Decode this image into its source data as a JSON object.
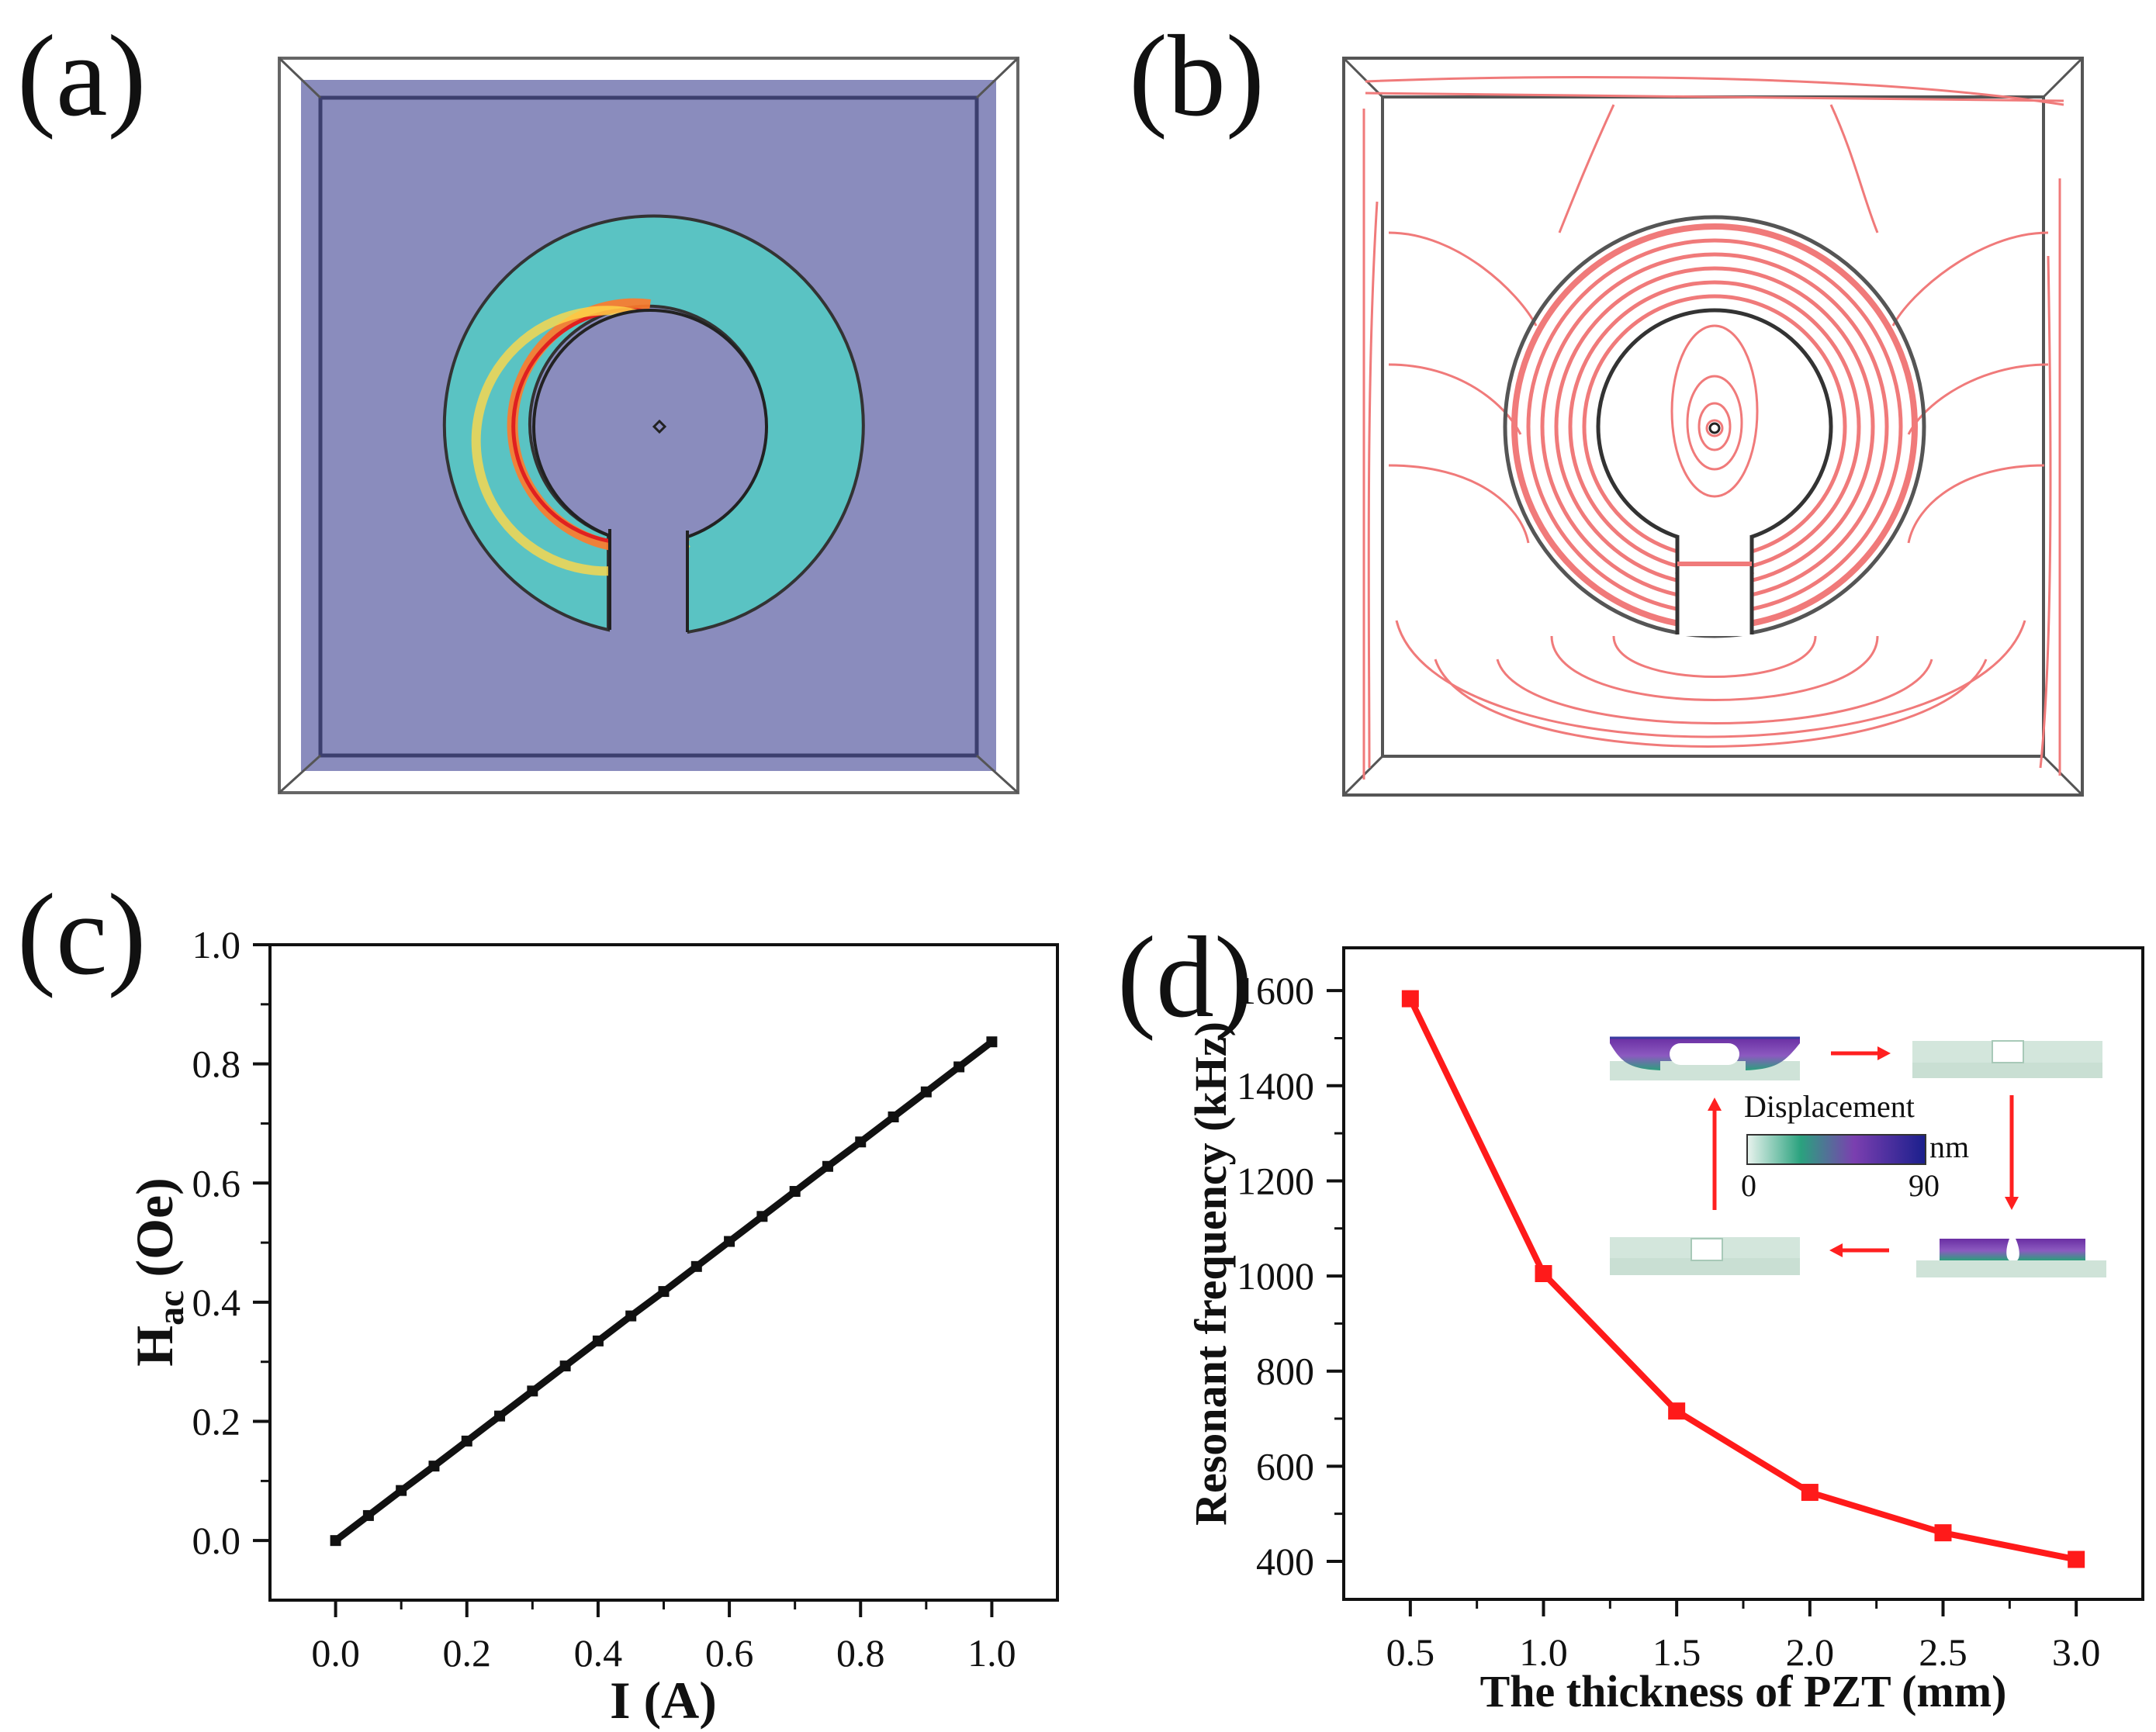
{
  "panels": {
    "a": {
      "label": "(a)"
    },
    "b": {
      "label": "(b)"
    },
    "c": {
      "label": "(c)"
    },
    "d": {
      "label": "(d)"
    }
  },
  "colors": {
    "chart_c_line": "#111111",
    "chart_d_line": "#ff1a1a",
    "field_lines": "#f07a7a",
    "background_box": "#8a8cbd"
  },
  "inset": {
    "title": "Displacement",
    "unit": "nm",
    "min_label": "0",
    "max_label": "90"
  },
  "chart_data": [
    {
      "id": "c",
      "type": "line",
      "xlabel": "I (A)",
      "ylabel_main": "H",
      "ylabel_sub": "ac",
      "ylabel_rest": " (Oe)",
      "xlim": [
        -0.1,
        1.1
      ],
      "ylim": [
        -0.1,
        1.0
      ],
      "xticks": [
        "0.0",
        "0.2",
        "0.4",
        "0.6",
        "0.8",
        "1.0"
      ],
      "yticks": [
        "0.0",
        "0.2",
        "0.4",
        "0.6",
        "0.8",
        "1.0"
      ],
      "x": [
        0.0,
        0.05,
        0.1,
        0.15,
        0.2,
        0.25,
        0.3,
        0.35,
        0.4,
        0.45,
        0.5,
        0.55,
        0.6,
        0.65,
        0.7,
        0.75,
        0.8,
        0.85,
        0.9,
        0.95,
        1.0
      ],
      "y": [
        0.0,
        0.042,
        0.084,
        0.125,
        0.167,
        0.209,
        0.251,
        0.293,
        0.335,
        0.377,
        0.418,
        0.46,
        0.502,
        0.544,
        0.586,
        0.628,
        0.669,
        0.711,
        0.753,
        0.795,
        0.837
      ]
    },
    {
      "id": "d",
      "type": "line",
      "xlabel": "The thickness of PZT (mm)",
      "ylabel": "Resonant frequency (kHz)",
      "xlim": [
        0.25,
        3.25
      ],
      "ylim": [
        320,
        1690
      ],
      "xticks": [
        "0.5",
        "1.0",
        "1.5",
        "2.0",
        "2.5",
        "3.0"
      ],
      "yticks": [
        "400",
        "600",
        "800",
        "1000",
        "1200",
        "1400",
        "1600"
      ],
      "x": [
        0.5,
        1.0,
        1.5,
        2.0,
        2.5,
        3.0
      ],
      "y": [
        1583,
        1005,
        716,
        545,
        460,
        404
      ]
    }
  ]
}
